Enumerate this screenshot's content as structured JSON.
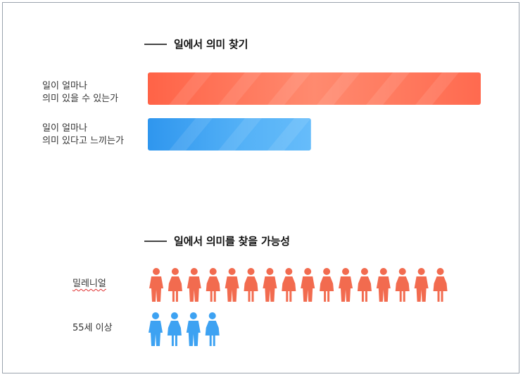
{
  "chart_data": [
    {
      "type": "bar",
      "title": "일에서 의미 찾기",
      "categories": [
        "일이 얼마나\n의미 있을 수 있는가",
        "일이 얼마나\n의미 있다고 느끼는가"
      ],
      "values": [
        100,
        49
      ],
      "xlim": [
        0,
        100
      ],
      "colors": [
        "#ff6b4f",
        "#3da2f2"
      ],
      "grid": false
    },
    {
      "type": "pictograph",
      "title": "일에서 의미를 찾을 가능성",
      "categories": [
        "밀레니얼",
        "55세 이상"
      ],
      "values": [
        16,
        4
      ],
      "colors": [
        "#f26b4f",
        "#3da2f2"
      ],
      "icon": "person-icon"
    }
  ]
}
